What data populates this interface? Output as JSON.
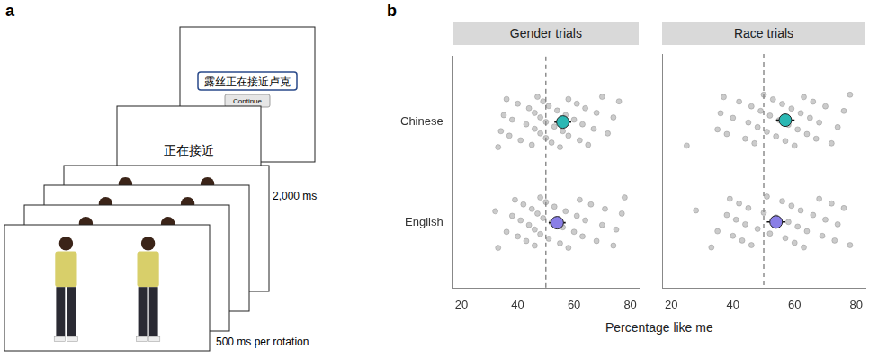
{
  "panel_letters": [
    "a",
    "b"
  ],
  "diagram": {
    "stimulus_frames": 4,
    "verb_text": "正在接近",
    "verb_duration": "2,000 ms",
    "rotation_duration": "500 ms per rotation",
    "response_text": "露丝正在接近卢克",
    "button": "Continue"
  },
  "shared_xlabel": "Percentage like me",
  "chart_data": [
    {
      "type": "scatter",
      "title": "Gender trials",
      "categories": [
        "Chinese",
        "English"
      ],
      "colors": [
        "#2bb8b4",
        "#8a7fe6"
      ],
      "points": [
        [
          33,
          34,
          35,
          36,
          37,
          38,
          40,
          41,
          43,
          44,
          45,
          46,
          46,
          47,
          48,
          48,
          49,
          50,
          50,
          51,
          52,
          53,
          54,
          55,
          56,
          57,
          58,
          58,
          60,
          61,
          62,
          63,
          64,
          65,
          67,
          68,
          70,
          72,
          74,
          76
        ],
        [
          32,
          33,
          36,
          38,
          39,
          40,
          41,
          42,
          43,
          44,
          45,
          46,
          46,
          47,
          48,
          48,
          49,
          50,
          51,
          52,
          53,
          55,
          56,
          57,
          58,
          60,
          61,
          62,
          63,
          64,
          66,
          68,
          70,
          71,
          74,
          75,
          77,
          78
        ]
      ],
      "means": [
        56,
        54
      ],
      "ci_low": [
        53,
        51
      ],
      "ci_high": [
        59,
        57
      ],
      "xlim": [
        17,
        83
      ],
      "xticks": [
        20,
        40,
        60,
        80
      ],
      "reference_x": 50,
      "tick_labels": true
    },
    {
      "type": "scatter",
      "title": "Race trials",
      "categories": [
        "Chinese",
        "English"
      ],
      "colors": [
        "#2bb8b4",
        "#8a7fe6"
      ],
      "points": [
        [
          25,
          35,
          36,
          37,
          38,
          40,
          42,
          44,
          45,
          46,
          47,
          48,
          49,
          50,
          51,
          52,
          53,
          54,
          55,
          56,
          57,
          58,
          59,
          60,
          61,
          62,
          63,
          64,
          65,
          66,
          67,
          68,
          70,
          72,
          74,
          76,
          78
        ],
        [
          28,
          33,
          35,
          38,
          39,
          40,
          41,
          42,
          43,
          44,
          45,
          46,
          48,
          50,
          51,
          52,
          54,
          56,
          57,
          58,
          59,
          60,
          61,
          62,
          63,
          64,
          66,
          68,
          69,
          70,
          72,
          73,
          74,
          76,
          78
        ]
      ],
      "means": [
        57,
        54
      ],
      "ci_low": [
        54,
        51
      ],
      "ci_high": [
        60,
        57
      ],
      "xlim": [
        17,
        83
      ],
      "xticks": [
        20,
        40,
        60,
        80
      ],
      "reference_x": 50,
      "tick_labels": "x"
    }
  ]
}
